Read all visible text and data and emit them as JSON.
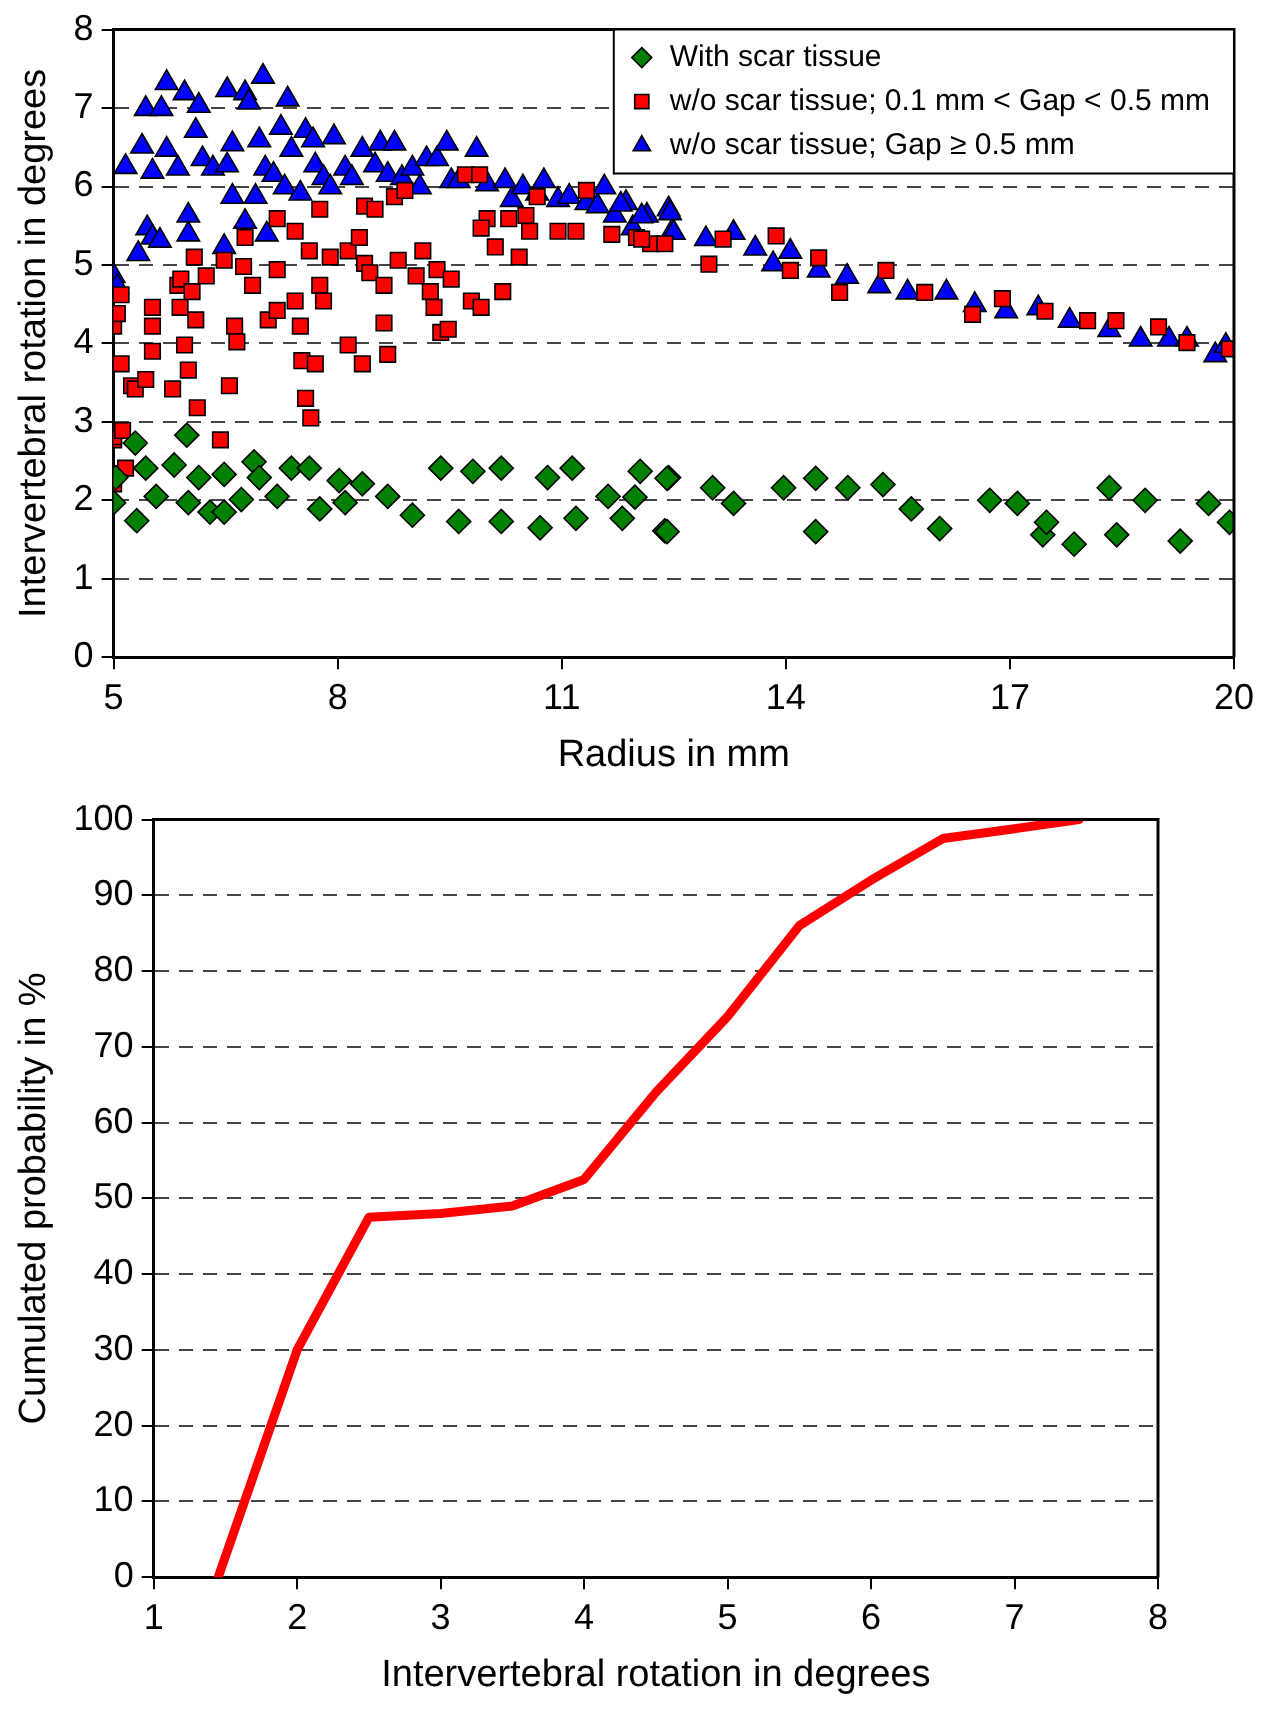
{
  "chart_data": [
    {
      "type": "scatter",
      "xlabel": "Radius in mm",
      "ylabel": "Intervertebral rotation in degrees",
      "xlim": [
        5,
        20
      ],
      "ylim": [
        0,
        8
      ],
      "xticks": [
        5,
        8,
        11,
        14,
        17,
        20
      ],
      "yticks": [
        0,
        1,
        2,
        3,
        4,
        5,
        6,
        7,
        8
      ],
      "grid": "y",
      "legend": "top right",
      "series": [
        {
          "name": "With scar tissue",
          "color": "#008000",
          "marker": "diamond",
          "x": [
            5.0,
            5.03,
            5.29,
            5.31,
            5.43,
            5.57,
            5.81,
            5.98,
            6.0,
            6.14,
            6.29,
            6.48,
            6.48,
            6.71,
            6.88,
            6.95,
            7.19,
            7.38,
            7.62,
            7.76,
            8.02,
            8.1,
            8.33,
            8.67,
            9.0,
            9.38,
            9.62,
            9.81,
            10.19,
            10.19,
            10.71,
            10.81,
            11.14,
            11.19,
            11.62,
            11.81,
            12.05,
            12.38,
            12.43,
            11.98,
            12.41,
            12.41,
            13.02,
            13.3,
            13.97,
            14.4,
            14.4,
            14.83,
            15.3,
            15.68,
            16.06,
            16.73,
            17.1,
            17.44,
            17.49,
            17.86,
            18.33,
            18.43,
            18.81,
            19.28,
            19.66,
            19.94
          ],
          "values": [
            1.97,
            2.29,
            2.73,
            1.74,
            2.41,
            2.05,
            2.45,
            2.83,
            1.97,
            2.29,
            1.85,
            1.85,
            2.33,
            2.01,
            2.49,
            2.29,
            2.05,
            2.41,
            2.41,
            1.89,
            2.25,
            1.97,
            2.21,
            2.05,
            1.81,
            2.41,
            1.73,
            2.37,
            2.41,
            1.73,
            1.65,
            2.29,
            2.41,
            1.77,
            2.05,
            1.77,
            2.37,
            1.61,
            2.29,
            2.04,
            2.28,
            1.6,
            2.16,
            1.96,
            2.16,
            2.28,
            1.6,
            2.16,
            2.2,
            1.89,
            1.64,
            2.0,
            1.96,
            1.56,
            1.72,
            1.44,
            2.16,
            1.56,
            2.0,
            1.48,
            1.96,
            1.72
          ]
        },
        {
          "name": "w/o scar tissue; 0.1 mm < Gap < 0.5 mm",
          "color": "#ff0000",
          "marker": "square",
          "x": [
            5.0,
            5.0,
            5.0,
            5.0,
            5.05,
            5.1,
            5.1,
            5.16,
            5.12,
            5.24,
            5.29,
            5.43,
            5.52,
            5.52,
            5.52,
            5.79,
            5.86,
            5.9,
            5.89,
            5.95,
            6.0,
            6.05,
            6.08,
            6.1,
            6.12,
            6.24,
            6.43,
            6.48,
            6.55,
            6.62,
            6.65,
            6.76,
            6.74,
            6.86,
            7.07,
            7.19,
            7.19,
            7.19,
            7.43,
            7.43,
            7.5,
            7.52,
            7.57,
            7.64,
            7.62,
            7.7,
            7.76,
            7.76,
            7.81,
            7.9,
            8.14,
            8.14,
            8.29,
            8.33,
            8.36,
            8.36,
            8.43,
            8.5,
            8.62,
            8.62,
            8.67,
            8.76,
            8.81,
            8.9,
            9.05,
            9.14,
            9.24,
            9.29,
            9.33,
            9.38,
            9.48,
            9.52,
            9.71,
            9.79,
            9.9,
            9.92,
            10.0,
            9.92,
            10.11,
            10.21,
            10.29,
            10.43,
            10.52,
            10.57,
            10.67,
            10.95,
            11.19,
            11.33,
            11.67,
            12.0,
            12.19,
            12.38,
            12.07,
            12.97,
            13.16,
            13.87,
            14.06,
            14.44,
            14.72,
            15.34,
            15.86,
            16.5,
            16.9,
            17.47,
            18.04,
            18.42,
            18.99,
            19.37,
            19.94
          ],
          "values": [
            2.77,
            2.81,
            4.22,
            2.21,
            4.38,
            4.62,
            3.74,
            2.41,
            2.89,
            3.46,
            3.42,
            3.54,
            4.46,
            4.22,
            3.9,
            3.42,
            4.74,
            4.82,
            4.46,
            3.98,
            3.66,
            4.66,
            5.1,
            4.3,
            3.18,
            4.86,
            2.77,
            5.06,
            3.46,
            4.22,
            4.02,
            5.35,
            4.98,
            4.74,
            4.3,
            4.42,
            5.59,
            4.94,
            5.43,
            4.54,
            4.22,
            3.78,
            3.3,
            3.05,
            5.18,
            3.74,
            5.71,
            4.74,
            4.54,
            5.1,
            5.18,
            3.98,
            5.35,
            3.74,
            5.75,
            5.02,
            4.9,
            5.71,
            4.26,
            4.74,
            3.86,
            5.87,
            5.06,
            5.95,
            4.86,
            5.18,
            4.66,
            4.46,
            4.94,
            4.14,
            4.18,
            4.82,
            6.15,
            4.54,
            6.15,
            4.46,
            5.59,
            5.47,
            5.23,
            4.66,
            5.59,
            5.1,
            5.63,
            5.43,
            5.87,
            5.43,
            5.43,
            5.95,
            5.39,
            5.35,
            5.27,
            5.27,
            5.33,
            5.01,
            5.33,
            5.37,
            4.93,
            5.09,
            4.65,
            4.93,
            4.65,
            4.37,
            4.57,
            4.41,
            4.29,
            4.29,
            4.21,
            4.01,
            3.93
          ]
        },
        {
          "name": "w/o scar tissue; Gap ≥ 0.5 mm",
          "color": "#0000ff",
          "marker": "triangle",
          "x": [
            5.0,
            5.05,
            5.16,
            5.33,
            5.38,
            5.43,
            5.45,
            5.52,
            5.52,
            5.62,
            5.64,
            5.71,
            5.71,
            5.86,
            5.95,
            6.0,
            6.0,
            6.1,
            6.14,
            6.19,
            6.33,
            6.48,
            6.52,
            6.52,
            6.59,
            6.59,
            6.76,
            6.76,
            6.81,
            6.9,
            6.95,
            7.0,
            7.03,
            7.05,
            7.14,
            7.24,
            7.29,
            7.33,
            7.38,
            7.5,
            7.57,
            7.67,
            7.7,
            7.81,
            7.9,
            7.95,
            8.1,
            8.19,
            8.33,
            8.5,
            8.57,
            8.67,
            8.76,
            8.86,
            9.0,
            9.1,
            9.19,
            9.33,
            9.46,
            9.52,
            9.62,
            9.86,
            10.0,
            10.24,
            10.33,
            10.48,
            10.67,
            10.76,
            10.95,
            11.1,
            11.33,
            11.48,
            11.57,
            11.71,
            11.86,
            11.95,
            12.14,
            12.43,
            12.48,
            11.79,
            12.07,
            12.45,
            12.5,
            12.93,
            13.3,
            13.59,
            13.83,
            14.06,
            14.44,
            14.82,
            15.25,
            15.63,
            16.15,
            16.53,
            16.95,
            17.38,
            17.8,
            18.33,
            18.75,
            19.13,
            19.37,
            19.75,
            19.89
          ],
          "values": [
            4.86,
            4.72,
            6.25,
            5.14,
            6.51,
            6.99,
            5.47,
            5.35,
            6.19,
            5.31,
            6.99,
            7.32,
            6.47,
            6.23,
            7.19,
            5.63,
            5.39,
            6.71,
            7.03,
            6.35,
            6.23,
            5.23,
            7.23,
            6.27,
            6.54,
            5.87,
            5.55,
            7.19,
            7.07,
            5.87,
            6.59,
            7.4,
            6.23,
            5.39,
            6.15,
            6.75,
            5.99,
            7.11,
            6.47,
            5.91,
            6.71,
            6.59,
            6.27,
            6.11,
            5.99,
            6.63,
            6.23,
            6.11,
            6.47,
            6.27,
            6.55,
            6.15,
            6.55,
            6.11,
            6.23,
            5.99,
            6.35,
            6.35,
            6.55,
            6.07,
            6.07,
            6.47,
            6.03,
            6.07,
            5.83,
            5.99,
            5.91,
            6.07,
            5.83,
            5.87,
            5.79,
            5.75,
            5.99,
            5.63,
            5.79,
            5.47,
            5.63,
            5.71,
            5.43,
            5.77,
            5.62,
            5.66,
            5.41,
            5.33,
            5.41,
            5.21,
            5.01,
            5.17,
            4.93,
            4.85,
            4.73,
            4.65,
            4.65,
            4.49,
            4.41,
            4.45,
            4.29,
            4.17,
            4.05,
            4.05,
            4.05,
            3.85,
            3.97
          ]
        }
      ]
    },
    {
      "type": "line",
      "xlabel": "Intervertebral rotation in degrees",
      "ylabel": "Cumulated probability in %",
      "xlim": [
        1,
        8
      ],
      "ylim": [
        0,
        100
      ],
      "xticks": [
        1,
        2,
        3,
        4,
        5,
        6,
        7,
        8
      ],
      "yticks": [
        0,
        10,
        20,
        30,
        40,
        50,
        60,
        70,
        80,
        90,
        100
      ],
      "grid": "y",
      "marker": "none",
      "series": [
        {
          "color": "#ff0000",
          "x": [
            1.45,
            2,
            2.5,
            3,
            3.5,
            4,
            4.5,
            5,
            5.5,
            6,
            6.5,
            7,
            7.45
          ],
          "values": [
            0,
            30,
            47.5,
            48,
            49,
            52.5,
            64,
            74,
            86,
            92,
            97.5,
            98.8,
            100
          ]
        }
      ]
    }
  ]
}
